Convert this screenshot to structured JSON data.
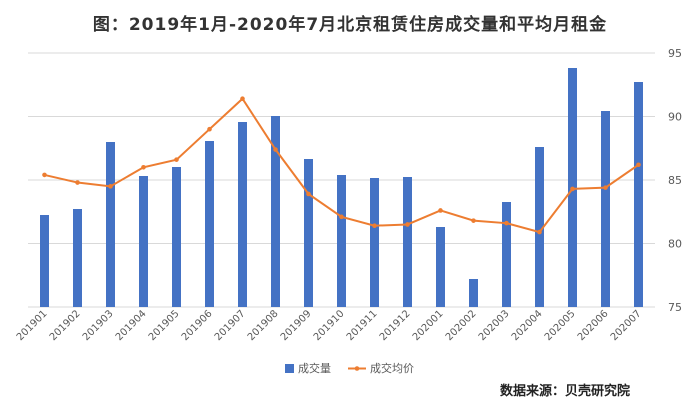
{
  "title": "图：2019年1月-2020年7月北京租赁住房成交量和平均月租金",
  "source": "数据来源：贝壳研究院",
  "colors": {
    "bar": "#4472C4",
    "line": "#ED7D31",
    "grid": "#D9D9D9",
    "tick": "#595959"
  },
  "chart_data": {
    "type": "bar",
    "title": "图：2019年1月-2020年7月北京租赁住房成交量和平均月租金",
    "categories": [
      "201901",
      "201902",
      "201903",
      "201904",
      "201905",
      "201906",
      "201907",
      "201908",
      "201909",
      "201910",
      "201911",
      "201912",
      "202001",
      "202002",
      "202003",
      "202004",
      "202005",
      "202006",
      "202007"
    ],
    "series": [
      {
        "name": "成交量",
        "type": "bar",
        "axis": "left",
        "values": [
          null,
          null,
          null,
          null,
          null,
          null,
          null,
          null,
          null,
          null,
          null,
          null,
          null,
          null,
          null,
          null,
          null,
          null,
          null
        ]
      },
      {
        "name": "成交均价",
        "type": "line",
        "axis": "right",
        "values": [
          85.4,
          84.8,
          84.5,
          86.0,
          86.6,
          89.0,
          91.4,
          87.4,
          83.9,
          82.1,
          81.4,
          81.5,
          82.6,
          81.8,
          81.6,
          80.9,
          84.3,
          84.4,
          86.2
        ]
      }
    ],
    "y_right_ticks": [
      "75",
      "80",
      "85",
      "90",
      "95"
    ],
    "y_right_lim": [
      75,
      95
    ],
    "grid": true,
    "legend_position": "bottom"
  }
}
